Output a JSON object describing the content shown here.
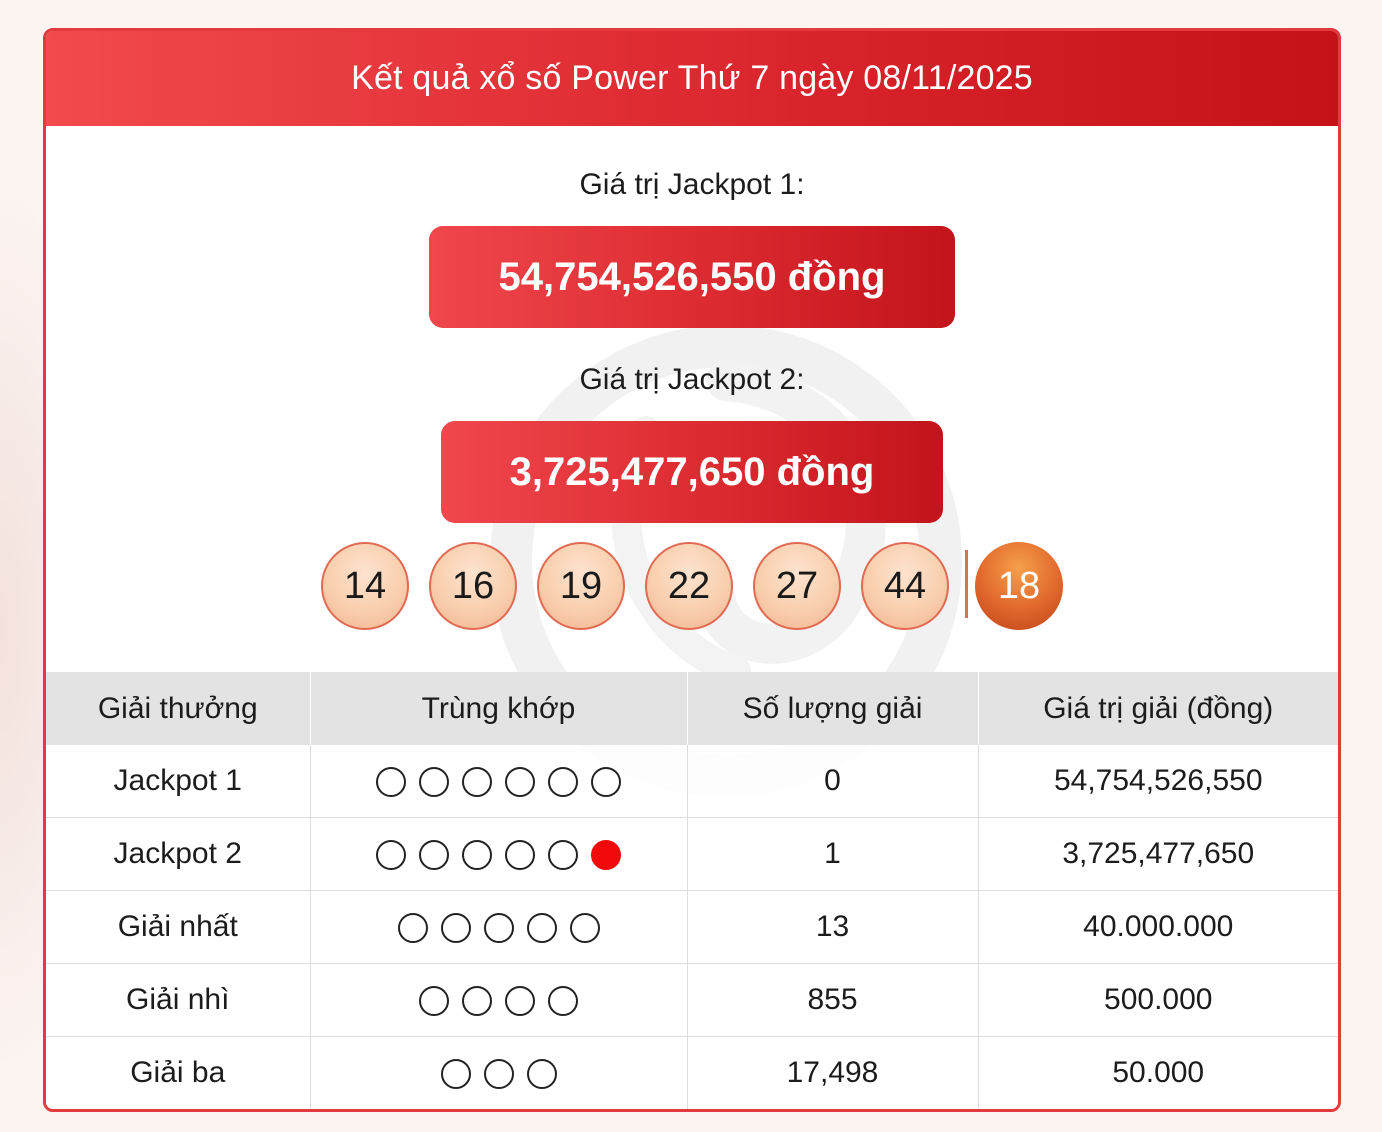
{
  "header": {
    "title": "Kết quả xổ số Power Thứ 7 ngày 08/11/2025"
  },
  "jackpot1": {
    "label": "Giá trị Jackpot 1:",
    "value": "54,754,526,550 đồng"
  },
  "jackpot2": {
    "label": "Giá trị Jackpot 2:",
    "value": "3,725,477,650 đồng"
  },
  "results": {
    "numbers": [
      "14",
      "16",
      "19",
      "22",
      "27",
      "44"
    ],
    "power_number": "18"
  },
  "colors": {
    "brand_red": "#d9232b",
    "power_ball_orange": "#e0672c",
    "match_dot_red": "#f00a0a"
  },
  "prize_table": {
    "headers": [
      "Giải thưởng",
      "Trùng khớp",
      "Số lượng giải",
      "Giá trị giải (đồng)"
    ],
    "rows": [
      {
        "name": "Jackpot 1",
        "match_count": 6,
        "power_match": false,
        "winners": "0",
        "value": "54,754,526,550"
      },
      {
        "name": "Jackpot 2",
        "match_count": 5,
        "power_match": true,
        "winners": "1",
        "value": "3,725,477,650"
      },
      {
        "name": "Giải nhất",
        "match_count": 5,
        "power_match": false,
        "winners": "13",
        "value": "40.000.000"
      },
      {
        "name": "Giải nhì",
        "match_count": 4,
        "power_match": false,
        "winners": "855",
        "value": "500.000"
      },
      {
        "name": "Giải ba",
        "match_count": 3,
        "power_match": false,
        "winners": "17,498",
        "value": "50.000"
      }
    ]
  }
}
